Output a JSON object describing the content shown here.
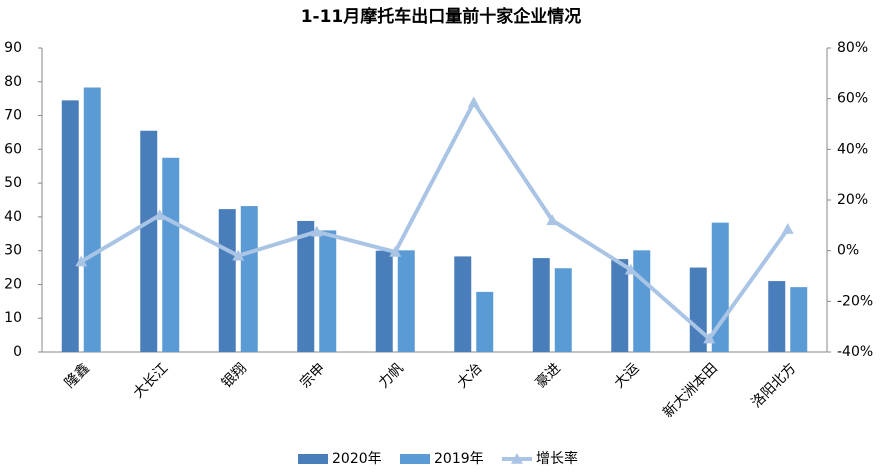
{
  "chart_data": {
    "type": "bar",
    "title": "1-11月摩托车出口量前十家企业情况",
    "categories": [
      "隆鑫",
      "大长江",
      "银翔",
      "宗申",
      "力帆",
      "大冶",
      "豪进",
      "大运",
      "新大洲本田",
      "洛阳北方"
    ],
    "series": [
      {
        "name": "2020年",
        "color": "#4a7ebb",
        "values": [
          74.5,
          65.5,
          42.3,
          38.8,
          30,
          28.3,
          27.8,
          27.5,
          25,
          21
        ]
      },
      {
        "name": "2019年",
        "color": "#5b9bd5",
        "values": [
          78.3,
          57.5,
          43.2,
          36,
          30.1,
          17.8,
          24.8,
          30.1,
          38.3,
          19.2
        ]
      },
      {
        "name": "增长率",
        "color": "#a9c4e5",
        "type": "line",
        "axis": "y2",
        "values": [
          -4.3,
          14,
          -2,
          7.5,
          -0.5,
          58.5,
          12,
          -7.5,
          -34.7,
          8.5
        ]
      }
    ],
    "ylim": [
      0,
      90
    ],
    "yticks": [
      0,
      10,
      20,
      30,
      40,
      50,
      60,
      70,
      80,
      90
    ],
    "y2lim": [
      -40,
      80
    ],
    "y2ticks": [
      {
        "value": -40,
        "label": "-40%"
      },
      {
        "value": -20,
        "label": "-20%"
      },
      {
        "value": 0,
        "label": "0%"
      },
      {
        "value": 20,
        "label": "20%"
      },
      {
        "value": 40,
        "label": "40%"
      },
      {
        "value": 60,
        "label": "60%"
      },
      {
        "value": 80,
        "label": "80%"
      }
    ],
    "legend": "bottom",
    "grid": false
  }
}
